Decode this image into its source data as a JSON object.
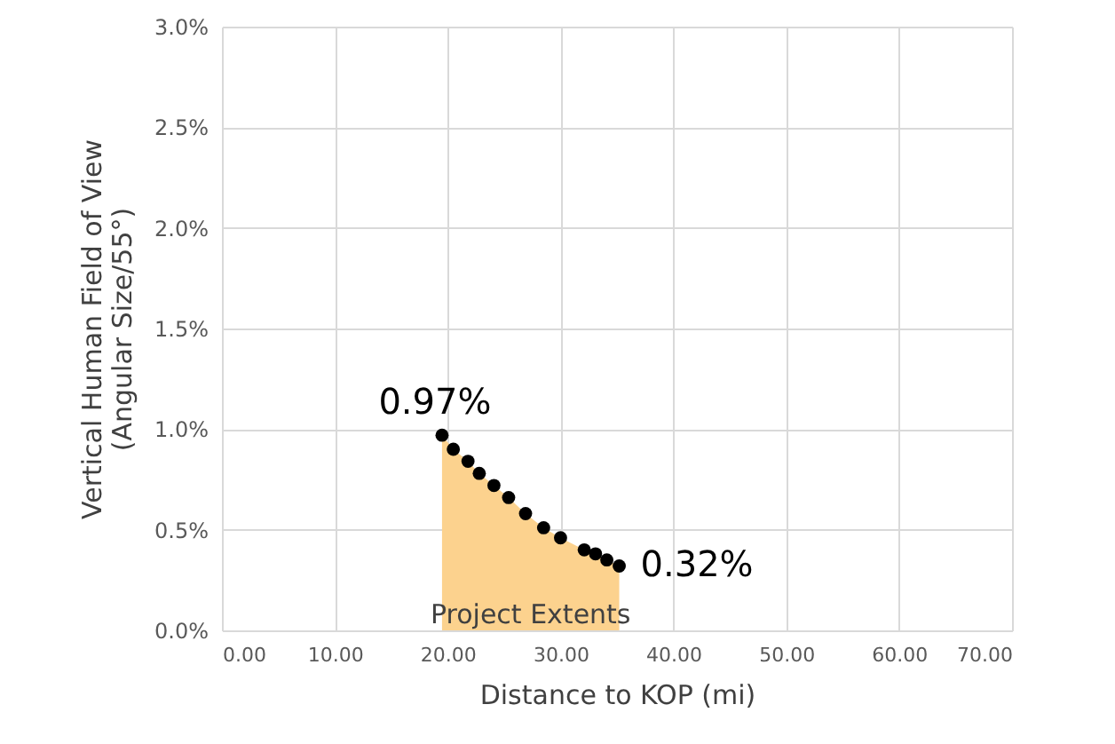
{
  "chart_data": {
    "type": "scatter",
    "xlabel": "Distance to KOP (mi)",
    "ylabel": "Vertical Human Field of View\n(Angular Size/55°)",
    "xlim": [
      0,
      70
    ],
    "xticks": [
      {
        "value": 0,
        "label": "0.00"
      },
      {
        "value": 10,
        "label": "10.00"
      },
      {
        "value": 20,
        "label": "20.00"
      },
      {
        "value": 30,
        "label": "30.00"
      },
      {
        "value": 40,
        "label": "40.00"
      },
      {
        "value": 50,
        "label": "50.00"
      },
      {
        "value": 60,
        "label": "60.00"
      },
      {
        "value": 70,
        "label": "70.00"
      }
    ],
    "ylim": [
      0,
      3
    ],
    "yticks": [
      {
        "value": 0,
        "label": "0.0%"
      },
      {
        "value": 0.5,
        "label": "0.5%"
      },
      {
        "value": 1,
        "label": "1.0%"
      },
      {
        "value": 1.5,
        "label": "1.5%"
      },
      {
        "value": 2,
        "label": "2.0%"
      },
      {
        "value": 2.5,
        "label": "2.5%"
      },
      {
        "value": 3,
        "label": "3.0%"
      }
    ],
    "grid": true,
    "series": [
      {
        "color": "#000000",
        "x": [
          19.5,
          20.5,
          21.8,
          22.8,
          24.1,
          25.4,
          26.9,
          28.5,
          30.0,
          32.1,
          33.1,
          34.1,
          35.2
        ],
        "values": [
          0.97,
          0.9,
          0.84,
          0.78,
          0.72,
          0.66,
          0.58,
          0.51,
          0.46,
          0.4,
          0.38,
          0.35,
          0.32
        ],
        "value_labels": [
          "0.97%",
          null,
          null,
          null,
          null,
          null,
          null,
          null,
          null,
          null,
          null,
          null,
          "0.32%"
        ]
      },
      {
        "type": "area",
        "color": "#fcd28e",
        "x": [
          19.5,
          20.5,
          21.8,
          22.8,
          24.1,
          25.4,
          26.9,
          28.5,
          30.0,
          32.1,
          33.1,
          34.1,
          35.2
        ],
        "values": [
          0.97,
          0.9,
          0.84,
          0.78,
          0.72,
          0.66,
          0.58,
          0.51,
          0.46,
          0.4,
          0.38,
          0.35,
          0.32
        ]
      }
    ],
    "annotations": [
      "Project Extents"
    ]
  }
}
